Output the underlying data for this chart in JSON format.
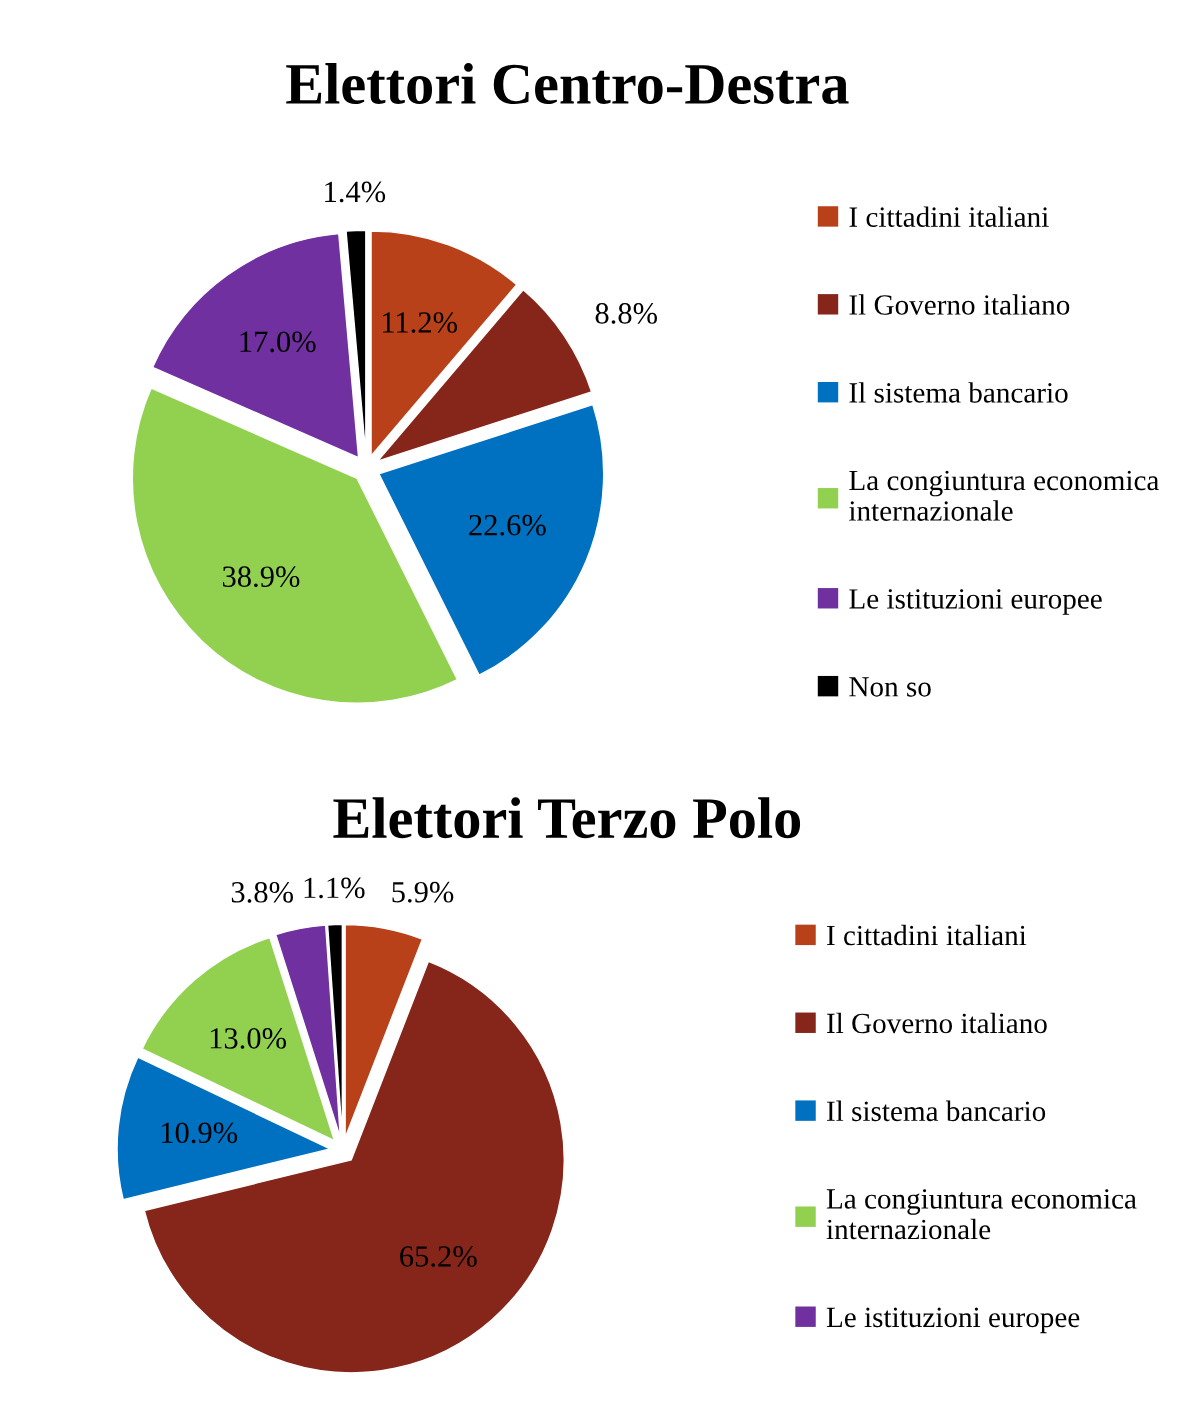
{
  "chart_data": [
    {
      "type": "pie",
      "title": "Elettori Centro-Destra",
      "categories": [
        "I cittadini italiani",
        "Il Governo italiano",
        "Il sistema bancario",
        "La congiuntura economica internazionale",
        "Le istituzioni europee",
        "Non so"
      ],
      "values": [
        11.2,
        8.8,
        22.6,
        38.9,
        17.0,
        1.4
      ],
      "value_labels": [
        "11.2%",
        "8.8%",
        "22.6%",
        "38.9%",
        "17.0%",
        "1.4%"
      ],
      "colors": [
        "#b9411a",
        "#862519",
        "#0070c0",
        "#92d050",
        "#7030a0",
        "#000000"
      ],
      "legend": "right"
    },
    {
      "type": "pie",
      "title": "Elettori Terzo Polo",
      "categories": [
        "I cittadini italiani",
        "Il Governo italiano",
        "Il sistema bancario",
        "La congiuntura economica internazionale",
        "Le istituzioni europee",
        null
      ],
      "values": [
        5.9,
        65.2,
        10.9,
        13.0,
        3.8,
        1.1
      ],
      "value_labels": [
        "5.9%",
        "65.2%",
        "10.9%",
        "13.0%",
        "3.8%",
        "1.1%"
      ],
      "colors": [
        "#b9411a",
        "#862519",
        "#0070c0",
        "#92d050",
        "#7030a0",
        "#000000"
      ],
      "legend": "right"
    }
  ]
}
